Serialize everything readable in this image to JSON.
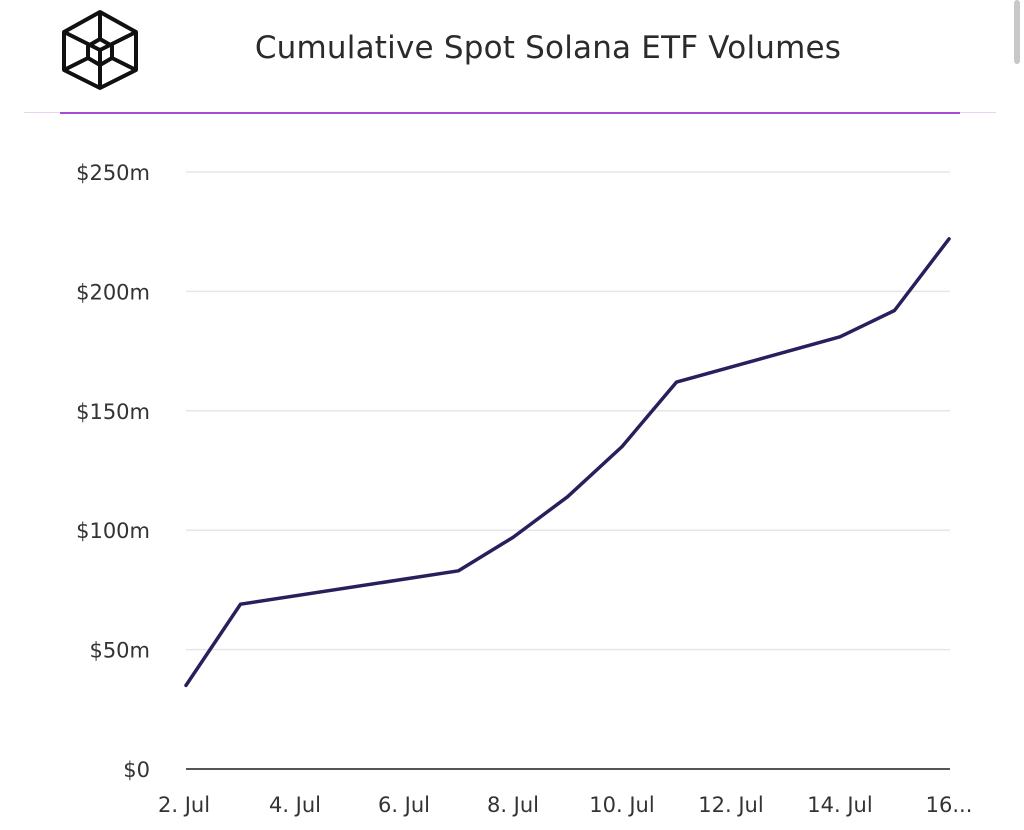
{
  "header": {
    "logo_name": "cube-logo",
    "title": "Cumulative Spot Solana ETF Volumes"
  },
  "colors": {
    "accent": "#a64ad8",
    "line": "#2a1e5c",
    "grid": "#e6e6e6"
  },
  "chart_data": {
    "type": "line",
    "title": "Cumulative Spot Solana ETF Volumes",
    "xlabel": "",
    "ylabel": "",
    "ylim": [
      0,
      250
    ],
    "y_unit": "$m",
    "y_ticks": [
      0,
      50,
      100,
      150,
      200,
      250
    ],
    "y_tick_labels": [
      "$0",
      "$50m",
      "$100m",
      "$150m",
      "$200m",
      "$250m"
    ],
    "x_tick_labels": [
      "2. Jul",
      "4. Jul",
      "6. Jul",
      "8. Jul",
      "10. Jul",
      "12. Jul",
      "14. Jul",
      "16..."
    ],
    "x_tick_dates": [
      "2025-07-02",
      "2025-07-04",
      "2025-07-06",
      "2025-07-08",
      "2025-07-10",
      "2025-07-12",
      "2025-07-14",
      "2025-07-16"
    ],
    "grid": true,
    "legend": "none",
    "series": [
      {
        "x": [
          "2025-07-02",
          "2025-07-03",
          "2025-07-07",
          "2025-07-08",
          "2025-07-09",
          "2025-07-10",
          "2025-07-11",
          "2025-07-14",
          "2025-07-15",
          "2025-07-16"
        ],
        "values": [
          35,
          69,
          83,
          97,
          114,
          135,
          162,
          181,
          192,
          222
        ]
      }
    ]
  }
}
